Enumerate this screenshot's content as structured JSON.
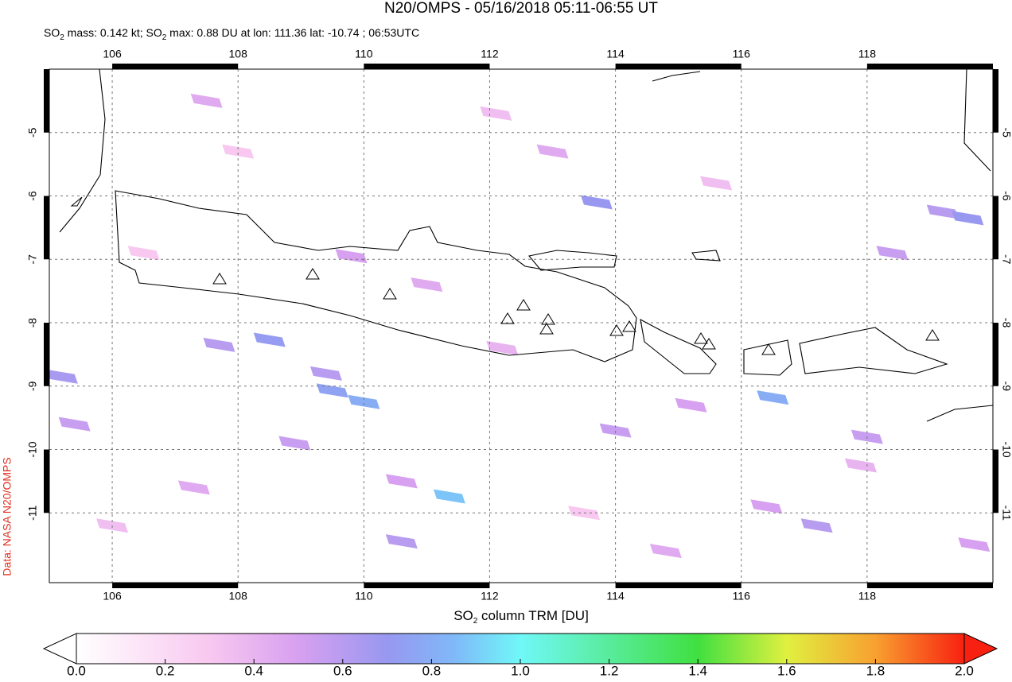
{
  "chart_data": {
    "type": "map",
    "title": "N20/OMPS - 05/16/2018 05:11-06:55 UT",
    "subtitle": [
      "SO",
      "2",
      " mass: 0.142 kt; SO",
      "2",
      " max: 0.88 DU at lon: 111.36 lat: -10.74 ; 06:53UTC"
    ],
    "credit": "Data: NASA N20/OMPS",
    "xlim": [
      105,
      120
    ],
    "ylim": [
      -12.1,
      -4
    ],
    "xticks": [
      106,
      108,
      110,
      112,
      114,
      116,
      118
    ],
    "yticks": [
      -5,
      -6,
      -7,
      -8,
      -9,
      -10,
      -11
    ],
    "grid": true,
    "pixels": [
      {
        "lon": 111.36,
        "lat": -10.74,
        "value": 0.88
      },
      {
        "lon": 110.0,
        "lat": -9.25,
        "value": 0.8
      },
      {
        "lon": 109.5,
        "lat": -9.07,
        "value": 0.75
      },
      {
        "lon": 113.7,
        "lat": -6.1,
        "value": 0.7
      },
      {
        "lon": 116.5,
        "lat": -9.18,
        "value": 0.8
      },
      {
        "lon": 108.5,
        "lat": -8.27,
        "value": 0.72
      },
      {
        "lon": 107.7,
        "lat": -8.35,
        "value": 0.6
      },
      {
        "lon": 109.4,
        "lat": -8.8,
        "value": 0.6
      },
      {
        "lon": 110.6,
        "lat": -10.5,
        "value": 0.5
      },
      {
        "lon": 110.6,
        "lat": -11.45,
        "value": 0.6
      },
      {
        "lon": 108.9,
        "lat": -9.9,
        "value": 0.55
      },
      {
        "lon": 107.3,
        "lat": -10.6,
        "value": 0.45
      },
      {
        "lon": 105.4,
        "lat": -9.6,
        "value": 0.55
      },
      {
        "lon": 105.2,
        "lat": -8.85,
        "value": 0.65
      },
      {
        "lon": 109.8,
        "lat": -6.95,
        "value": 0.5
      },
      {
        "lon": 107.5,
        "lat": -4.5,
        "value": 0.45
      },
      {
        "lon": 111.0,
        "lat": -7.4,
        "value": 0.45
      },
      {
        "lon": 112.2,
        "lat": -8.4,
        "value": 0.4
      },
      {
        "lon": 113.0,
        "lat": -5.3,
        "value": 0.45
      },
      {
        "lon": 114.0,
        "lat": -9.7,
        "value": 0.55
      },
      {
        "lon": 115.2,
        "lat": -9.3,
        "value": 0.5
      },
      {
        "lon": 116.4,
        "lat": -10.9,
        "value": 0.5
      },
      {
        "lon": 117.2,
        "lat": -11.2,
        "value": 0.6
      },
      {
        "lon": 118.4,
        "lat": -6.9,
        "value": 0.55
      },
      {
        "lon": 119.2,
        "lat": -6.25,
        "value": 0.6
      },
      {
        "lon": 119.6,
        "lat": -6.35,
        "value": 0.7
      },
      {
        "lon": 118.0,
        "lat": -9.8,
        "value": 0.55
      },
      {
        "lon": 119.7,
        "lat": -11.5,
        "value": 0.5
      },
      {
        "lon": 114.8,
        "lat": -11.6,
        "value": 0.45
      },
      {
        "lon": 117.9,
        "lat": -10.25,
        "value": 0.4
      },
      {
        "lon": 112.1,
        "lat": -4.7,
        "value": 0.35
      },
      {
        "lon": 106.5,
        "lat": -6.9,
        "value": 0.3
      },
      {
        "lon": 106.0,
        "lat": -11.2,
        "value": 0.35
      },
      {
        "lon": 115.6,
        "lat": -5.8,
        "value": 0.35
      },
      {
        "lon": 113.5,
        "lat": -11.0,
        "value": 0.3
      },
      {
        "lon": 108.0,
        "lat": -5.3,
        "value": 0.3
      }
    ],
    "colorbar": {
      "label": [
        "SO",
        "2",
        " column TRM [DU]"
      ],
      "lim": [
        0,
        2
      ],
      "ticks": [
        {
          "value": 0,
          "label": "0.0"
        },
        0.2,
        0.4,
        0.6,
        0.8,
        {
          "value": 1,
          "label": "1.0"
        },
        1.2,
        1.4,
        1.6,
        1.8,
        {
          "value": 2,
          "label": "2.0"
        }
      ],
      "colormap": [
        {
          "value": 0,
          "color": "#ffffff"
        },
        {
          "value": 0.3,
          "color": "#f8c8f0"
        },
        {
          "value": 0.5,
          "color": "#d8a0f0"
        },
        {
          "value": 0.7,
          "color": "#9898f0"
        },
        {
          "value": 0.85,
          "color": "#80b8f8"
        },
        {
          "value": 1.0,
          "color": "#70f8f8"
        },
        {
          "value": 1.4,
          "color": "#40e040"
        },
        {
          "value": 1.6,
          "color": "#e0f040"
        },
        {
          "value": 1.8,
          "color": "#f8a030"
        },
        {
          "value": 2,
          "color": "#f82010"
        }
      ]
    }
  }
}
